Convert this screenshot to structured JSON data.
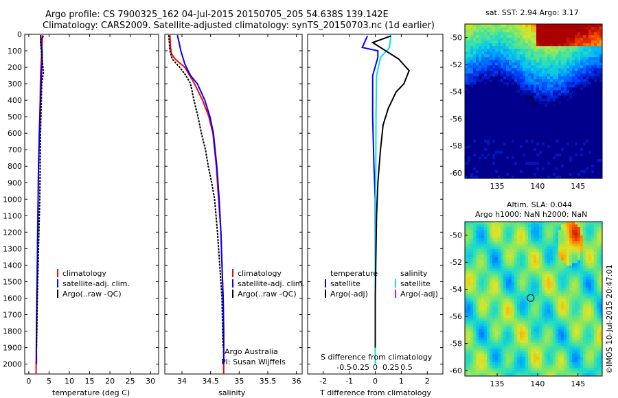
{
  "header": {
    "line1": "Argo profile: CS 7900325_162 04-Jul-2015 20150705_205 54.638S 139.142E",
    "line2": "Climatology: CARS2009. Satellite-adjusted climatology: synTS_20150703.nc (1d earlier)"
  },
  "colors": {
    "climatology": "#ff0000",
    "satellite": "#0000ff",
    "argo": "#000000",
    "sal_satellite": "#00e5ee",
    "sal_argo": "#ee00ee"
  },
  "chart_data": [
    {
      "type": "line",
      "name": "temperature-profile",
      "xlabel": "temperature (deg C)",
      "ylabel": "",
      "xlim": [
        -1,
        32
      ],
      "ylim": [
        2060,
        0
      ],
      "xticks": [
        0,
        5,
        10,
        15,
        20,
        25,
        30
      ],
      "yticks": [
        0,
        100,
        200,
        300,
        400,
        500,
        600,
        700,
        800,
        900,
        1000,
        1100,
        1200,
        1300,
        1400,
        1500,
        1600,
        1700,
        1800,
        1900,
        2000
      ],
      "legend": [
        "climatology",
        "satellite-adj. clim.",
        "Argo(..raw -QC)"
      ],
      "series": [
        {
          "name": "climatology",
          "color": "#ff0000",
          "points": [
            [
              3.3,
              5
            ],
            [
              3.3,
              60
            ],
            [
              3.2,
              100
            ],
            [
              3.1,
              150
            ],
            [
              2.9,
              250
            ],
            [
              2.8,
              400
            ],
            [
              2.6,
              600
            ],
            [
              2.4,
              800
            ],
            [
              2.3,
              1000
            ],
            [
              2.2,
              1200
            ],
            [
              2.1,
              1400
            ],
            [
              2.0,
              1600
            ],
            [
              1.9,
              1800
            ],
            [
              1.8,
              2060
            ]
          ]
        },
        {
          "name": "satellite-adj. clim.",
          "color": "#0000ff",
          "points": [
            [
              2.9,
              5
            ],
            [
              3.0,
              50
            ],
            [
              3.3,
              100
            ],
            [
              3.3,
              150
            ],
            [
              3.1,
              250
            ],
            [
              2.9,
              400
            ],
            [
              2.6,
              600
            ],
            [
              2.4,
              800
            ],
            [
              2.3,
              1000
            ],
            [
              2.2,
              1200
            ],
            [
              2.1,
              1400
            ],
            [
              2.0,
              1600
            ],
            [
              1.9,
              1800
            ],
            [
              1.9,
              2000
            ]
          ]
        },
        {
          "name": "Argo",
          "color": "#000000",
          "points": [
            [
              3.6,
              10
            ],
            [
              2.9,
              40
            ],
            [
              3.0,
              80
            ],
            [
              3.3,
              150
            ],
            [
              3.6,
              230
            ],
            [
              3.2,
              300
            ],
            [
              3.1,
              400
            ],
            [
              2.9,
              600
            ],
            [
              2.8,
              800
            ],
            [
              2.7,
              1000
            ],
            [
              2.5,
              1200
            ],
            [
              2.3,
              1400
            ],
            [
              2.1,
              1600
            ],
            [
              2.0,
              1800
            ],
            [
              1.9,
              1900
            ]
          ]
        }
      ]
    },
    {
      "type": "line",
      "name": "salinity-profile",
      "xlabel": "salinity",
      "xlim": [
        33.7,
        36.1
      ],
      "ylim": [
        2060,
        0
      ],
      "xticks": [
        34,
        34.5,
        35,
        35.5,
        36
      ],
      "legend": [
        "climatology",
        "satellite-adj. clim.",
        "Argo(..raw -QC)"
      ],
      "annotations": [
        "Argo Australia",
        "PI: Susan Wijffels"
      ],
      "series": [
        {
          "name": "climatology",
          "color": "#ff0000",
          "points": [
            [
              33.79,
              5
            ],
            [
              33.8,
              80
            ],
            [
              33.82,
              120
            ],
            [
              33.88,
              150
            ],
            [
              34.05,
              200
            ],
            [
              34.22,
              300
            ],
            [
              34.36,
              400
            ],
            [
              34.47,
              500
            ],
            [
              34.54,
              600
            ],
            [
              34.6,
              800
            ],
            [
              34.64,
              1000
            ],
            [
              34.68,
              1200
            ],
            [
              34.7,
              1400
            ],
            [
              34.72,
              1600
            ],
            [
              34.73,
              1800
            ],
            [
              34.73,
              2060
            ]
          ]
        },
        {
          "name": "satellite-adj. clim.",
          "color": "#0000ff",
          "points": [
            [
              33.92,
              5
            ],
            [
              33.95,
              50
            ],
            [
              33.98,
              100
            ],
            [
              34.05,
              180
            ],
            [
              34.15,
              250
            ],
            [
              34.27,
              300
            ],
            [
              34.4,
              400
            ],
            [
              34.49,
              500
            ],
            [
              34.55,
              600
            ],
            [
              34.61,
              800
            ],
            [
              34.65,
              1000
            ],
            [
              34.68,
              1200
            ],
            [
              34.7,
              1400
            ],
            [
              34.72,
              1600
            ],
            [
              34.73,
              1800
            ],
            [
              34.73,
              2000
            ]
          ]
        },
        {
          "name": "Argo",
          "color": "#000000",
          "points": [
            [
              33.77,
              5
            ],
            [
              33.79,
              100
            ],
            [
              33.83,
              150
            ],
            [
              33.96,
              200
            ],
            [
              34.07,
              250
            ],
            [
              34.15,
              300
            ],
            [
              34.21,
              400
            ],
            [
              34.28,
              500
            ],
            [
              34.34,
              600
            ],
            [
              34.41,
              700
            ],
            [
              34.46,
              800
            ],
            [
              34.52,
              900
            ],
            [
              34.57,
              1000
            ],
            [
              34.62,
              1200
            ],
            [
              34.66,
              1400
            ],
            [
              34.7,
              1600
            ],
            [
              34.71,
              1800
            ],
            [
              34.72,
              1900
            ]
          ]
        }
      ]
    },
    {
      "type": "line",
      "name": "difference-profile",
      "xlabel": "T difference from climatology",
      "top_label": "S difference from climatology",
      "xlim": [
        -2.6,
        2.6
      ],
      "ylim": [
        2060,
        0
      ],
      "xticks": [
        -2,
        -1,
        0,
        1,
        2
      ],
      "s_ticks": [
        "-0.5",
        "-0.25",
        "0",
        "0.25",
        "0.5"
      ],
      "legend_temperature": [
        "temperature",
        "satellite",
        "Argo(-adj)"
      ],
      "legend_salinity": [
        "salinity",
        "satellite",
        "Argo(-adj)"
      ],
      "series": [
        {
          "name": "T satellite",
          "color": "#0000ff",
          "points": [
            [
              -0.3,
              10
            ],
            [
              -0.5,
              80
            ],
            [
              0.1,
              100
            ],
            [
              0.1,
              140
            ],
            [
              -0.1,
              250
            ],
            [
              -0.1,
              500
            ],
            [
              -0.05,
              800
            ],
            [
              0,
              1000
            ],
            [
              0,
              1500
            ],
            [
              0,
              2000
            ]
          ]
        },
        {
          "name": "S satellite",
          "color": "#00e5ee",
          "points": [
            [
              0.6,
              5
            ],
            [
              0.55,
              80
            ],
            [
              0.2,
              140
            ],
            [
              0.05,
              250
            ],
            [
              0.03,
              500
            ],
            [
              0.02,
              800
            ],
            [
              0.01,
              1000
            ],
            [
              0,
              1500
            ],
            [
              0,
              2000
            ]
          ]
        },
        {
          "name": "T Argo(-adj)",
          "color": "#000000",
          "points": [
            [
              0.6,
              10
            ],
            [
              -0.1,
              50
            ],
            [
              0.3,
              90
            ],
            [
              0.9,
              150
            ],
            [
              1.3,
              220
            ],
            [
              1.1,
              300
            ],
            [
              0.8,
              350
            ],
            [
              0.5,
              450
            ],
            [
              0.3,
              550
            ],
            [
              0.2,
              700
            ],
            [
              0.1,
              900
            ],
            [
              0.05,
              1100
            ],
            [
              0.03,
              1300
            ],
            [
              0,
              1600
            ],
            [
              0,
              1900
            ]
          ]
        }
      ]
    },
    {
      "type": "heatmap",
      "name": "sst-map",
      "title": "sat. SST: 2.94  Argo: 3.17",
      "xlim": [
        131,
        148
      ],
      "ylim": [
        -60.4,
        -49
      ],
      "xticks": [
        135,
        140,
        145
      ],
      "yticks": [
        -50,
        -52,
        -54,
        -56,
        -58,
        -60
      ],
      "marker": [
        139.142,
        -54.638
      ]
    },
    {
      "type": "heatmap",
      "name": "sla-map",
      "title_line1": "Altim. SLA: 0.044",
      "title_line2": "Argo h1000: NaN  h2000: NaN",
      "xlim": [
        131,
        148
      ],
      "ylim": [
        -60.4,
        -49
      ],
      "xticks": [
        135,
        140,
        145
      ],
      "yticks": [
        -50,
        -52,
        -54,
        -56,
        -58,
        -60
      ],
      "marker": [
        139.142,
        -54.638
      ]
    }
  ],
  "footer": {
    "watermark": "©IMOS 10-Jul-2015 20:47:01"
  }
}
